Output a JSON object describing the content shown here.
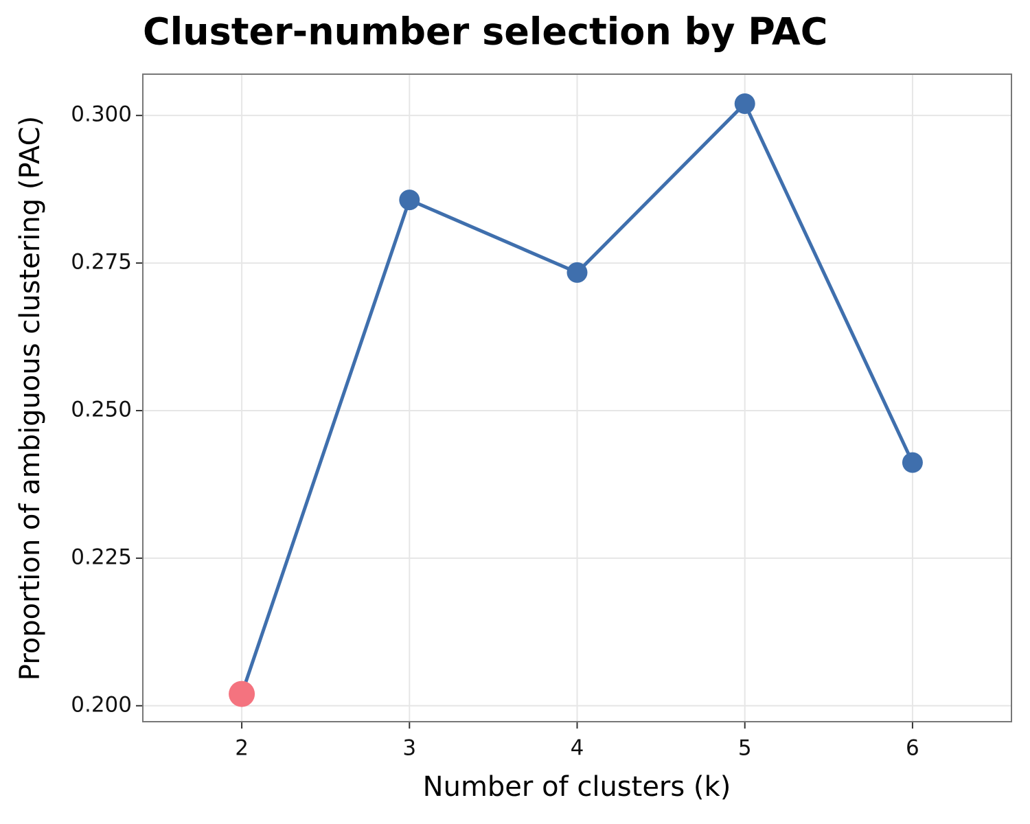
{
  "chart_data": {
    "type": "line",
    "title": "Cluster-number selection by PAC",
    "x_label": "Number of clusters (k)",
    "y_label": "Proportion of ambiguous clustering (PAC)",
    "x": [
      2,
      3,
      4,
      5,
      6
    ],
    "series": [
      {
        "name": "PAC",
        "color": "#3f6fad",
        "values": [
          0.202,
          0.2857,
          0.2734,
          0.302,
          0.2412
        ],
        "point_colors": [
          "#f4737f",
          "#3f6fad",
          "#3f6fad",
          "#3f6fad",
          "#3f6fad"
        ]
      }
    ],
    "xlim": [
      1.41,
      6.59
    ],
    "xticks": [
      2,
      3,
      4,
      5,
      6
    ],
    "ylim": [
      0.1973,
      0.307
    ],
    "yticks": [
      {
        "value": 0.2,
        "label": "0.200"
      },
      {
        "value": 0.225,
        "label": "0.225"
      },
      {
        "value": 0.25,
        "label": "0.250"
      },
      {
        "value": 0.275,
        "label": "0.275"
      },
      {
        "value": 0.3,
        "label": "0.300"
      }
    ],
    "grid": true
  }
}
